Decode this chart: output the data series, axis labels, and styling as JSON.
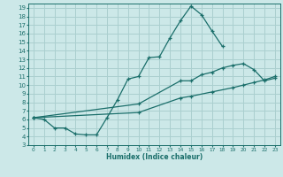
{
  "xlabel": "Humidex (Indice chaleur)",
  "bg_color": "#cce8e8",
  "grid_color": "#aacfcf",
  "line_color": "#1a6e6a",
  "xlim": [
    -0.5,
    23.5
  ],
  "ylim": [
    3,
    19.5
  ],
  "xticks": [
    0,
    1,
    2,
    3,
    4,
    5,
    6,
    7,
    8,
    9,
    10,
    11,
    12,
    13,
    14,
    15,
    16,
    17,
    18,
    19,
    20,
    21,
    22,
    23
  ],
  "yticks": [
    3,
    4,
    5,
    6,
    7,
    8,
    9,
    10,
    11,
    12,
    13,
    14,
    15,
    16,
    17,
    18,
    19
  ],
  "line1_x": [
    0,
    1,
    2,
    3,
    4,
    5,
    6,
    7,
    8,
    9,
    10,
    11,
    12,
    13,
    14,
    15,
    16,
    17,
    18
  ],
  "line1_y": [
    6.2,
    6.0,
    5.0,
    5.0,
    4.3,
    4.2,
    4.2,
    6.2,
    8.3,
    10.7,
    11.0,
    13.2,
    13.3,
    15.5,
    17.5,
    19.2,
    18.2,
    16.3,
    14.5
  ],
  "line2_x": [
    0,
    10,
    14,
    15,
    16,
    17,
    18,
    19,
    20,
    21,
    22,
    23
  ],
  "line2_y": [
    6.2,
    7.8,
    10.5,
    10.5,
    11.2,
    11.5,
    12.0,
    12.3,
    12.5,
    11.8,
    10.5,
    10.8
  ],
  "line3_x": [
    0,
    10,
    14,
    15,
    17,
    19,
    20,
    21,
    22,
    23
  ],
  "line3_y": [
    6.2,
    6.8,
    8.5,
    8.7,
    9.2,
    9.7,
    10.0,
    10.3,
    10.6,
    11.0
  ]
}
